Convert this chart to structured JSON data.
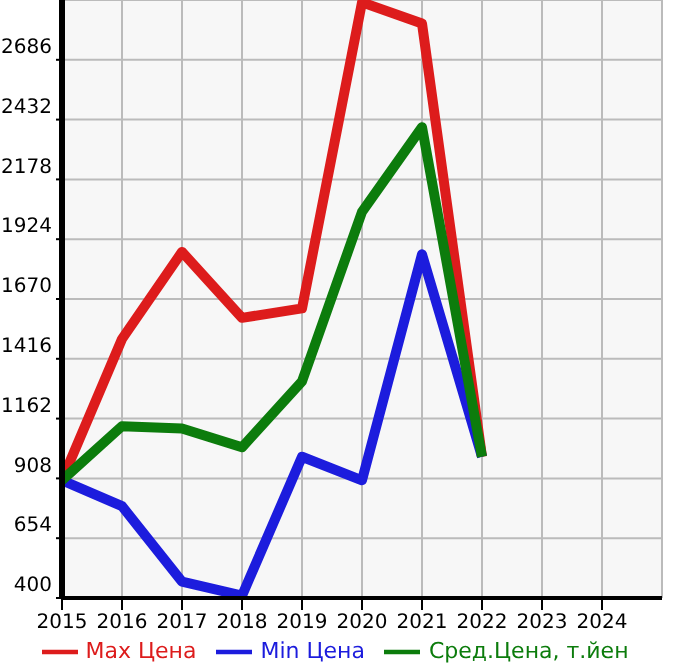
{
  "chart_data": {
    "type": "line",
    "x": [
      2015,
      2016,
      2017,
      2018,
      2019,
      2020,
      2021,
      2022
    ],
    "series": [
      {
        "name": "Max Цена",
        "color": "#dd1c1c",
        "values": [
          900,
          1500,
          1870,
          1590,
          1630,
          2930,
          2840,
          1000
        ]
      },
      {
        "name": "Min Цена",
        "color": "#1c1cdd",
        "values": [
          900,
          790,
          470,
          410,
          1000,
          900,
          1860,
          1000
        ]
      },
      {
        "name": "Сред.Цена, т.йен",
        "color": "#0c7c0c",
        "values": [
          900,
          1130,
          1120,
          1040,
          1320,
          2040,
          2400,
          1000
        ]
      }
    ],
    "xlim": [
      2015,
      2025
    ],
    "xticks": [
      2015,
      2016,
      2017,
      2018,
      2019,
      2020,
      2021,
      2022,
      2023,
      2024
    ],
    "ylim": [
      400,
      2940
    ],
    "yticks": [
      400,
      654,
      908,
      1162,
      1416,
      1670,
      1924,
      2178,
      2432,
      2686
    ],
    "grid": true,
    "legend": "bottom",
    "marker": "none",
    "line_style": "solid"
  }
}
